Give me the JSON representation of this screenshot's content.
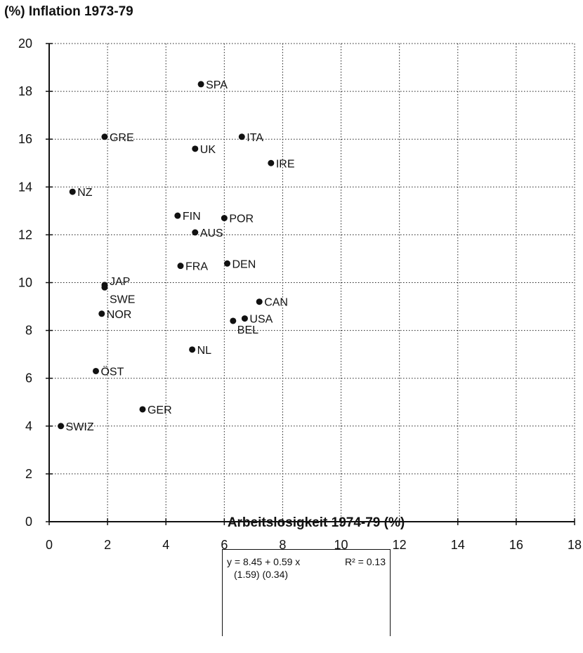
{
  "chart_data": {
    "type": "scatter",
    "ylabel": "(%) Inflation 1973-79",
    "xlabel": "Arbeitslosigkeit 1974-79 (%)",
    "xlim": [
      0,
      18
    ],
    "ylim": [
      0,
      20
    ],
    "xticks": [
      0,
      2,
      4,
      6,
      8,
      10,
      12,
      14,
      16,
      18
    ],
    "yticks": [
      0,
      2,
      4,
      6,
      8,
      10,
      12,
      14,
      16,
      18,
      20
    ],
    "grid": true,
    "points": [
      {
        "label": "SPA",
        "x": 5.2,
        "y": 18.3
      },
      {
        "label": "GRE",
        "x": 1.9,
        "y": 16.1
      },
      {
        "label": "ITA",
        "x": 6.6,
        "y": 16.1
      },
      {
        "label": "UK",
        "x": 5.0,
        "y": 15.6
      },
      {
        "label": "IRE",
        "x": 7.6,
        "y": 15.0
      },
      {
        "label": "NZ",
        "x": 0.8,
        "y": 13.8
      },
      {
        "label": "FIN",
        "x": 4.4,
        "y": 12.8
      },
      {
        "label": "POR",
        "x": 6.0,
        "y": 12.7
      },
      {
        "label": "AUS",
        "x": 5.0,
        "y": 12.1
      },
      {
        "label": "FRA",
        "x": 4.5,
        "y": 10.7
      },
      {
        "label": "DEN",
        "x": 6.1,
        "y": 10.8
      },
      {
        "label": "JAP",
        "x": 1.9,
        "y": 9.9
      },
      {
        "label": "SWE",
        "x": 1.9,
        "y": 9.8
      },
      {
        "label": "NOR",
        "x": 1.8,
        "y": 8.7
      },
      {
        "label": "CAN",
        "x": 7.2,
        "y": 9.2
      },
      {
        "label": "USA",
        "x": 6.7,
        "y": 8.5
      },
      {
        "label": "BEL",
        "x": 6.3,
        "y": 8.4
      },
      {
        "label": "NL",
        "x": 4.9,
        "y": 7.2
      },
      {
        "label": "ÖST",
        "x": 1.6,
        "y": 6.3
      },
      {
        "label": "GER",
        "x": 3.2,
        "y": 4.7
      },
      {
        "label": "SWIZ",
        "x": 0.4,
        "y": 4.0
      }
    ],
    "regression": {
      "equation": "y = 8.45 + 0.59 x",
      "r2": "R² = 0.13",
      "std_errors": "(1.59)   (0.34)"
    }
  }
}
